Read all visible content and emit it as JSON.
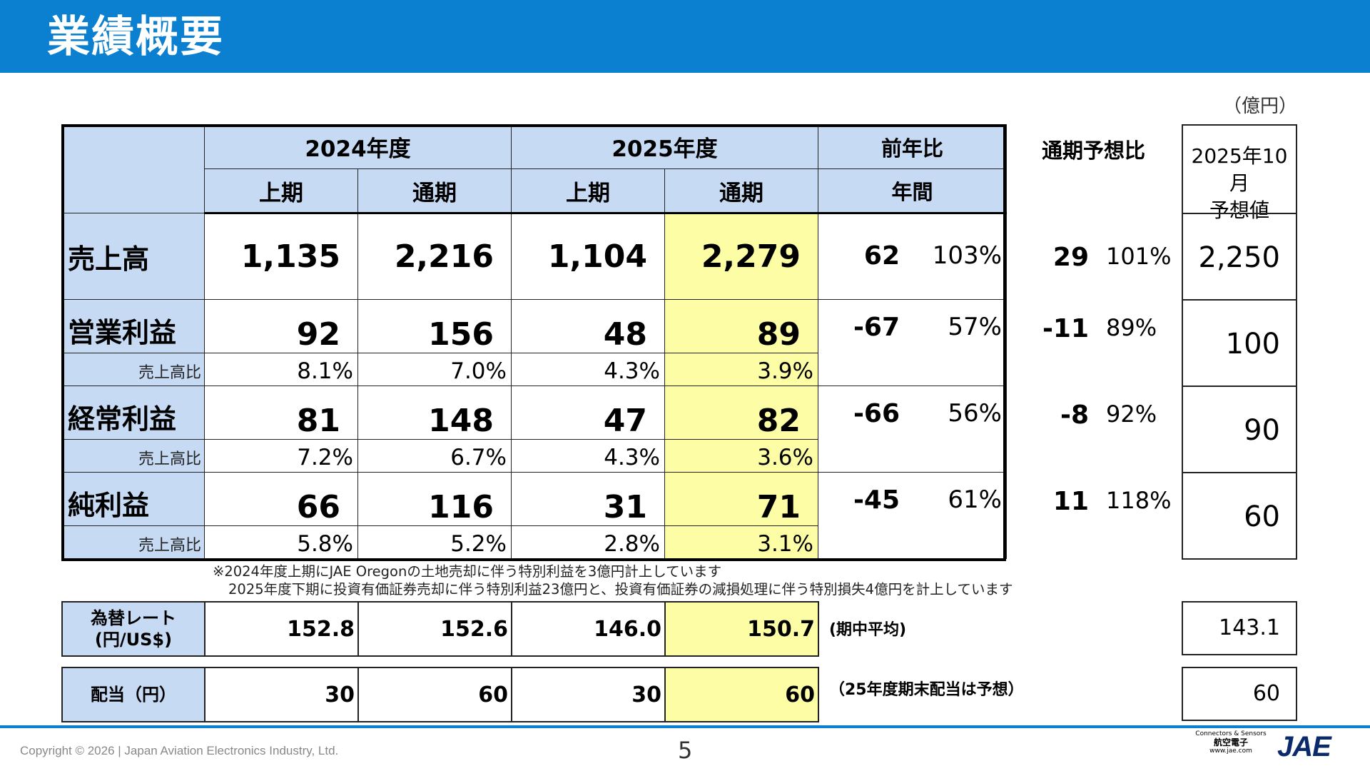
{
  "header": {
    "title": "業績概要"
  },
  "unit": "（億円）",
  "table": {
    "year_2024": "2024年度",
    "year_2025": "2025年度",
    "yoy_header": "前年比",
    "h1": "上期",
    "full": "通期",
    "annual": "年間",
    "sub_label": "売上高比",
    "rows": {
      "sales": {
        "label": "売上高",
        "v2024_h1": "1,135",
        "v2024_full": "2,216",
        "v2025_h1": "1,104",
        "v2025_full": "2,279",
        "yoy_diff": "62",
        "yoy_ratio": "103%",
        "fc_diff": "29",
        "fc_ratio": "101%",
        "forecast": "2,250"
      },
      "op": {
        "label": "営業利益",
        "v2024_h1": "92",
        "v2024_full": "156",
        "v2025_h1": "48",
        "v2025_full": "89",
        "p2024_h1": "8.1%",
        "p2024_full": "7.0%",
        "p2025_h1": "4.3%",
        "p2025_full": "3.9%",
        "yoy_diff": "-67",
        "yoy_ratio": "57%",
        "fc_diff": "-11",
        "fc_ratio": "89%",
        "forecast": "100"
      },
      "ord": {
        "label": "経常利益",
        "v2024_h1": "81",
        "v2024_full": "148",
        "v2025_h1": "47",
        "v2025_full": "82",
        "p2024_h1": "7.2%",
        "p2024_full": "6.7%",
        "p2025_h1": "4.3%",
        "p2025_full": "3.6%",
        "yoy_diff": "-66",
        "yoy_ratio": "56%",
        "fc_diff": "-8",
        "fc_ratio": "92%",
        "forecast": "90"
      },
      "net": {
        "label": "純利益",
        "v2024_h1": "66",
        "v2024_full": "116",
        "v2025_h1": "31",
        "v2025_full": "71",
        "p2024_h1": "5.8%",
        "p2024_full": "5.2%",
        "p2025_h1": "2.8%",
        "p2025_full": "3.1%",
        "yoy_diff": "-45",
        "yoy_ratio": "61%",
        "fc_diff": "11",
        "fc_ratio": "118%",
        "forecast": "60"
      }
    }
  },
  "forecast_compare": {
    "header": "通期予想比"
  },
  "forecast_box": {
    "header_line1": "2025年10月",
    "header_line2": "予想値"
  },
  "notes": {
    "line1": "※2024年度上期にJAE Oregonの土地売却に伴う特別利益を3億円計上しています",
    "line2": "2025年度下期に投資有価証券売却に伴う特別利益23億円と、投資有価証券の減損処理に伴う特別損失4億円を計上しています"
  },
  "fx": {
    "label1": "為替レート",
    "label2": "(円/US$)",
    "v2024_h1": "152.8",
    "v2024_full": "152.6",
    "v2025_h1": "146.0",
    "v2025_full": "150.7",
    "note": "(期中平均)",
    "forecast": "143.1"
  },
  "dividend": {
    "label": "配当（円）",
    "v2024_h1": "30",
    "v2024_full": "60",
    "v2025_h1": "30",
    "v2025_full": "60",
    "note": "（25年度期末配当は予想）",
    "forecast": "60"
  },
  "footer": {
    "copyright": "Copyright © 2026 | Japan Aviation Electronics Industry, Ltd.",
    "page": "5",
    "logo_tagline": "Connectors & Sensors",
    "logo_kanji": "航空電子",
    "logo_url": "www.jae.com",
    "logo_text": "JAE"
  },
  "colors": {
    "header_blue": "#0b7fd0",
    "cell_blue": "#c7daf3",
    "highlight_yellow": "#fdfda6"
  }
}
